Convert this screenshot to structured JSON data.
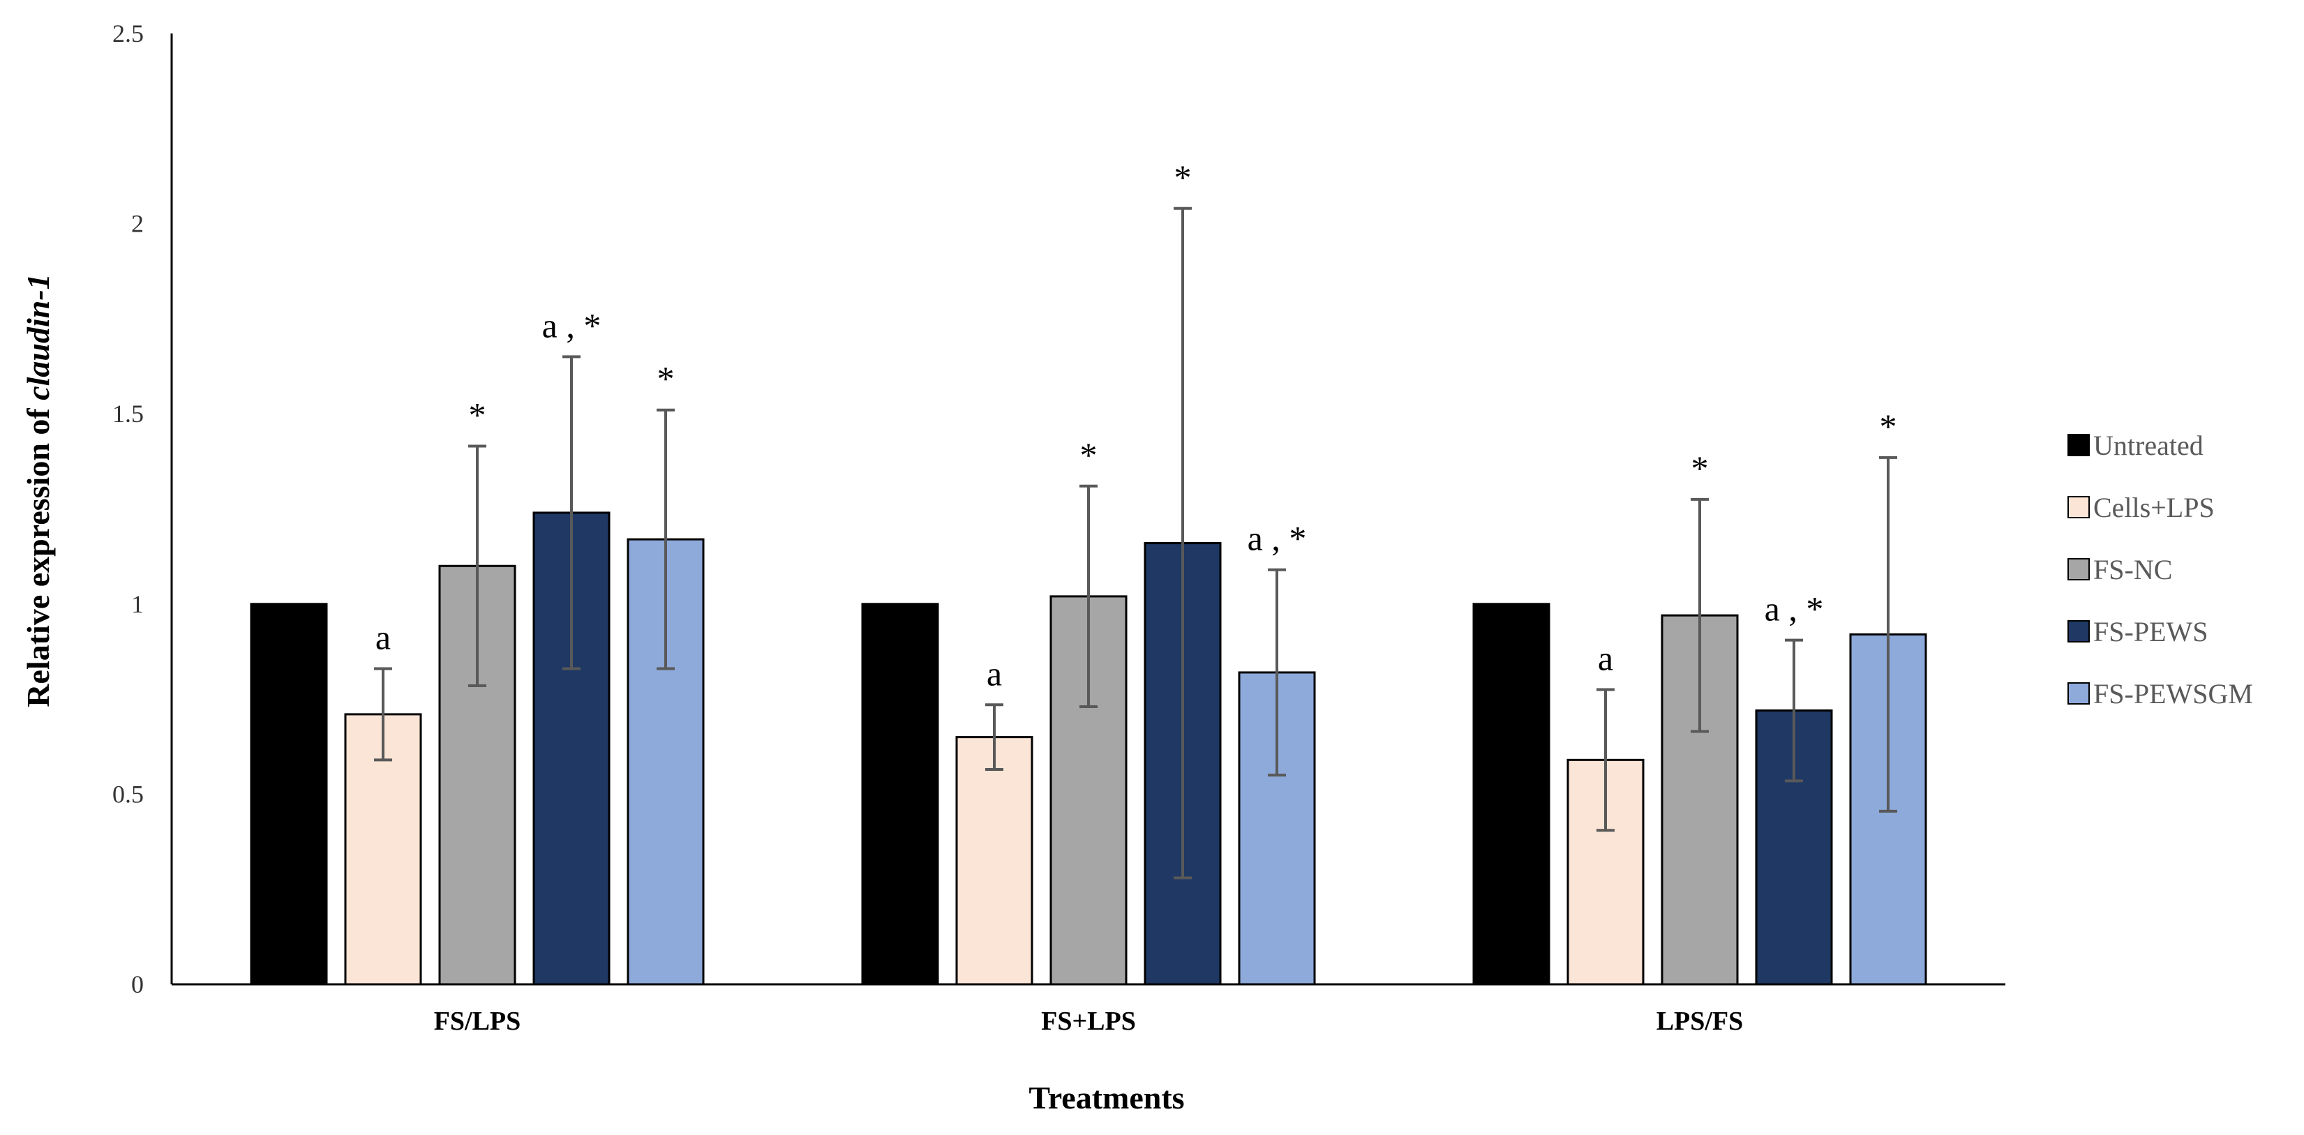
{
  "chart_data": {
    "type": "bar",
    "title": "",
    "xlabel": "Treatments",
    "ylabel_prefix": "Relative expression of ",
    "ylabel_gene": "claudin-1",
    "ylim": [
      0,
      2.5
    ],
    "yticks": [
      0,
      0.5,
      1,
      1.5,
      2,
      2.5
    ],
    "ytick_labels": [
      "0",
      "0.5",
      "1",
      "1.5",
      "2",
      "2.5"
    ],
    "grid": false,
    "legend_position": "right",
    "categories": [
      "FS/LPS",
      "FS+LPS",
      "LPS/FS"
    ],
    "series": [
      {
        "name": "Untreated",
        "color": "#000000",
        "values": [
          1.0,
          1.0,
          1.0
        ],
        "errors": [
          0.0,
          0.0,
          0.0
        ],
        "annotations": [
          "",
          "",
          ""
        ]
      },
      {
        "name": "Cells+LPS",
        "color": "#fbe5d6",
        "values": [
          0.71,
          0.65,
          0.59
        ],
        "errors": [
          0.12,
          0.085,
          0.185
        ],
        "annotations": [
          "a",
          "a",
          "a"
        ]
      },
      {
        "name": "FS-NC",
        "color": "#a6a6a6",
        "values": [
          1.1,
          1.02,
          0.97
        ],
        "errors": [
          0.315,
          0.29,
          0.305
        ],
        "annotations": [
          "*",
          "*",
          "*"
        ]
      },
      {
        "name": "FS-PEWS",
        "color": "#1f3864",
        "values": [
          1.24,
          1.16,
          0.72
        ],
        "errors": [
          0.41,
          0.88,
          0.185
        ],
        "annotations": [
          "a , *",
          "*",
          "a , *"
        ]
      },
      {
        "name": "FS-PEWSGM",
        "color": "#8eaadb",
        "values": [
          1.17,
          0.82,
          0.92
        ],
        "errors": [
          0.34,
          0.27,
          0.465
        ],
        "annotations": [
          "*",
          "a , *",
          "*"
        ]
      }
    ]
  }
}
